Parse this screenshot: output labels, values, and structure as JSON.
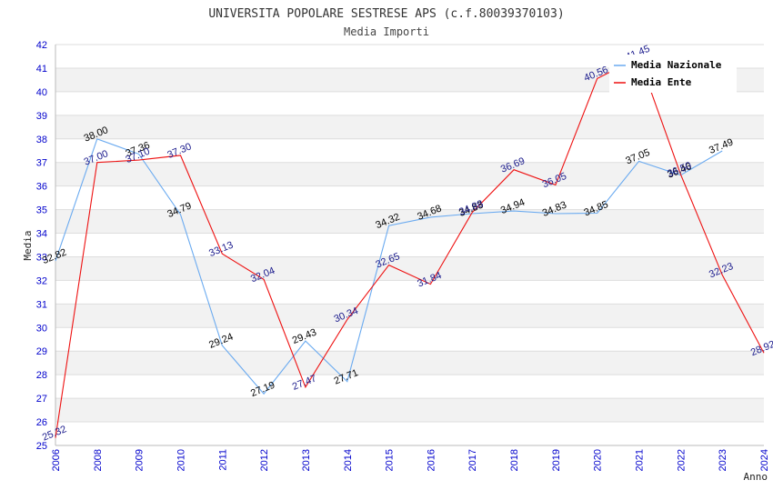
{
  "chart_data": {
    "type": "line",
    "title": "UNIVERSITA POPOLARE SESTRESE APS (c.f.80039370103)",
    "subtitle": "Media Importi",
    "ylabel": "Media",
    "xlabel": "Anno",
    "ylim": [
      25,
      42
    ],
    "yticks": [
      "25",
      "26",
      "27",
      "28",
      "29",
      "30",
      "31",
      "32",
      "33",
      "34",
      "35",
      "36",
      "37",
      "38",
      "39",
      "40",
      "41",
      "42"
    ],
    "categories": [
      "2006",
      "2008",
      "2009",
      "2010",
      "2011",
      "2012",
      "2013",
      "2014",
      "2015",
      "2016",
      "2017",
      "2018",
      "2019",
      "2020",
      "2021",
      "2022",
      "2023",
      "2024"
    ],
    "series": [
      {
        "name": "Media Nazionale",
        "color": "#6aaaf0",
        "label_color": "#000000",
        "values": [
          32.82,
          38.0,
          37.36,
          34.79,
          29.24,
          27.19,
          29.43,
          27.71,
          34.32,
          34.68,
          34.83,
          34.94,
          34.83,
          34.85,
          37.05,
          36.46,
          37.49,
          null
        ],
        "labels": [
          "32.82",
          "38.00",
          "37.36",
          "34.79",
          "29.24",
          "27.19",
          "29.43",
          "27.71",
          "34.32",
          "34.68",
          "34.83",
          "34.94",
          "34.83",
          "34.85",
          "37.05",
          "36.46",
          "37.49",
          null
        ]
      },
      {
        "name": "Media Ente",
        "color": "#ee1111",
        "label_color": "#1a1a8c",
        "values": [
          25.32,
          37.0,
          37.1,
          37.3,
          33.13,
          32.04,
          27.47,
          30.34,
          32.65,
          31.84,
          34.88,
          36.69,
          36.05,
          40.56,
          41.45,
          36.5,
          32.23,
          28.92
        ],
        "labels": [
          "25.32",
          "37.00",
          "37.10",
          "37.30",
          "33.13",
          "32.04",
          "27.47",
          "30.34",
          "32.65",
          "31.84",
          "34.88",
          "36.69",
          "36.05",
          "40.56",
          "41.45",
          "36.50",
          "32.23",
          "28.92"
        ]
      }
    ],
    "grid": true,
    "legend_position": "top-right"
  }
}
